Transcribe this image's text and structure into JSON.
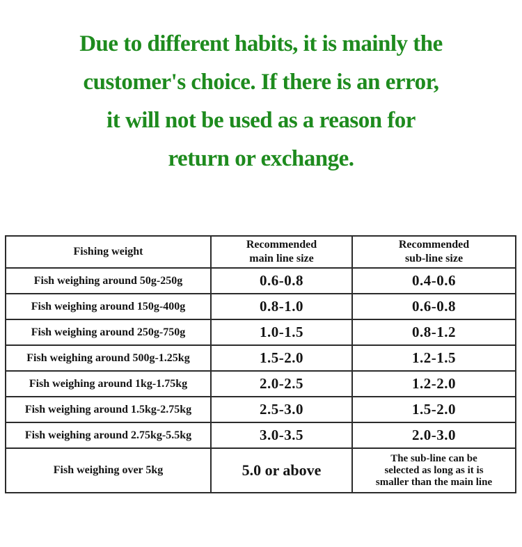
{
  "heading": {
    "color": "#1e8b1e",
    "lines": [
      "Due to different habits, it is mainly the",
      "customer's choice. If there is an error,",
      "it will not be used as a reason for",
      "return or exchange."
    ]
  },
  "table": {
    "headers": [
      "Fishing weight",
      "Recommended\nmain line size",
      "Recommended\nsub-line size"
    ],
    "rows": [
      {
        "weight": "Fish weighing around 50g-250g",
        "main": "0.6-0.8",
        "sub": "0.4-0.6"
      },
      {
        "weight": "Fish weighing around 150g-400g",
        "main": "0.8-1.0",
        "sub": "0.6-0.8"
      },
      {
        "weight": "Fish weighing around 250g-750g",
        "main": "1.0-1.5",
        "sub": "0.8-1.2"
      },
      {
        "weight": "Fish weighing around 500g-1.25kg",
        "main": "1.5-2.0",
        "sub": "1.2-1.5"
      },
      {
        "weight": "Fish weighing around 1kg-1.75kg",
        "main": "2.0-2.5",
        "sub": "1.2-2.0"
      },
      {
        "weight": "Fish weighing around 1.5kg-2.75kg",
        "main": "2.5-3.0",
        "sub": "1.5-2.0"
      },
      {
        "weight": "Fish weighing around 2.75kg-5.5kg",
        "main": "3.0-3.5",
        "sub": "2.0-3.0"
      },
      {
        "weight": "Fish weighing over 5kg",
        "main": "5.0 or above",
        "sub": "The sub-line can be\nselected as long as it is\nsmaller than the main line"
      }
    ]
  }
}
